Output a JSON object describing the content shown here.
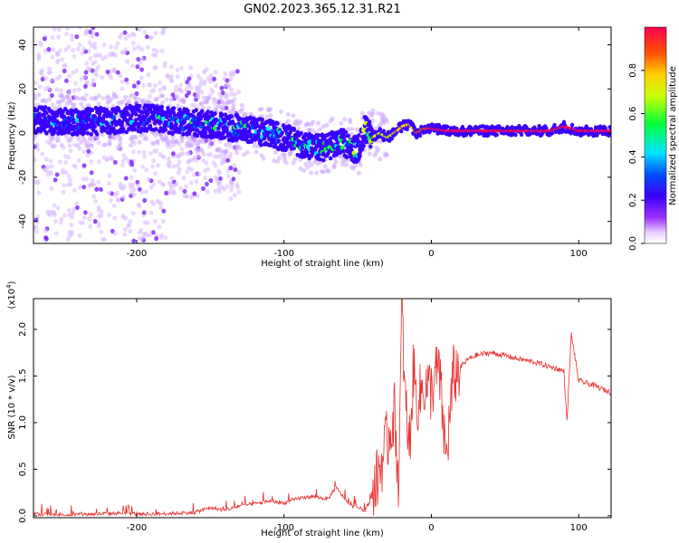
{
  "title": "GN02.2023.365.12.31.R21",
  "chart_data": [
    {
      "type": "heatmap",
      "xlabel": "Height of straight line (km)",
      "ylabel": "Frequency (Hz)",
      "xlim": [
        -270,
        122
      ],
      "ylim": [
        -50,
        48
      ],
      "x_ticks": [
        "-200",
        "-100",
        "0",
        "100"
      ],
      "x_tick_values": [
        -200,
        -100,
        0,
        100
      ],
      "y_ticks": [
        "-40",
        "-20",
        "0",
        "20",
        "40"
      ],
      "y_tick_values": [
        -40,
        -20,
        0,
        20,
        40
      ],
      "colorbar": {
        "label": "Normalized spectral amplitude",
        "ticks": [
          "0.0",
          "0.2",
          "0.4",
          "0.6",
          "0.8"
        ],
        "tick_values": [
          0.0,
          0.2,
          0.4,
          0.6,
          0.8
        ],
        "range": [
          0,
          1
        ],
        "colors": [
          "#ffffff",
          "#9b30ff",
          "#3a00ff",
          "#0050ff",
          "#00e5ff",
          "#00ff40",
          "#c8ff00",
          "#ffd000",
          "#ff5000",
          "#ff0050"
        ]
      },
      "ridge": {
        "x": [
          -270,
          -240,
          -210,
          -190,
          -170,
          -150,
          -130,
          -110,
          -95,
          -80,
          -70,
          -60,
          -50,
          -45,
          -40,
          -35,
          -30,
          -25,
          -20,
          -15,
          -10,
          -5,
          0,
          10,
          20,
          40,
          60,
          80,
          90,
          100,
          122
        ],
        "y": [
          6,
          5,
          6,
          7,
          5,
          4,
          2,
          0,
          -3,
          -7,
          -6,
          -4,
          -8,
          2,
          -2,
          0,
          -2,
          0,
          3,
          4,
          0,
          2,
          2,
          1,
          1,
          1,
          1,
          1,
          3,
          1,
          1
        ],
        "amplitude": [
          0.25,
          0.25,
          0.28,
          0.3,
          0.32,
          0.33,
          0.35,
          0.35,
          0.38,
          0.4,
          0.4,
          0.42,
          0.45,
          0.5,
          0.55,
          0.6,
          0.65,
          0.7,
          0.72,
          0.75,
          0.8,
          0.85,
          0.9,
          0.95,
          0.95,
          0.95,
          0.95,
          0.95,
          0.9,
          0.92,
          0.92
        ]
      }
    },
    {
      "type": "line",
      "xlabel": "Height of straight line (km)",
      "ylabel": "SNR (10 * v/v)",
      "y_multiplier": "(x10",
      "y_multiplier_exp": "4",
      "y_multiplier_close": ")",
      "xlim": [
        -270,
        122
      ],
      "ylim": [
        -0.02,
        2.33
      ],
      "x_ticks": [
        "-200",
        "-100",
        "0",
        "100"
      ],
      "x_tick_values": [
        -200,
        -100,
        0,
        100
      ],
      "y_ticks": [
        "0.0",
        "0.5",
        "1.0",
        "1.5",
        "2.0"
      ],
      "y_tick_values": [
        0.0,
        0.5,
        1.0,
        1.5,
        2.0
      ],
      "color": "#e83030",
      "series": [
        {
          "x": [
            -270,
            -250,
            -230,
            -210,
            -190,
            -170,
            -160,
            -150,
            -140,
            -130,
            -120,
            -110,
            -100,
            -90,
            -80,
            -70,
            -65,
            -55,
            -50,
            -45,
            -40,
            -35,
            -30,
            -25,
            -22,
            -20,
            -18,
            -15,
            -12,
            -10,
            -5,
            0,
            5,
            10,
            15,
            20,
            25,
            30,
            40,
            50,
            60,
            70,
            80,
            85,
            90,
            92,
            95,
            100,
            110,
            122
          ],
          "y": [
            0.01,
            0.0,
            0.01,
            0.02,
            0.01,
            0.02,
            0.03,
            0.08,
            0.05,
            0.1,
            0.12,
            0.15,
            0.13,
            0.18,
            0.2,
            0.17,
            0.3,
            0.1,
            0.08,
            0.05,
            0.2,
            0.5,
            0.8,
            1.1,
            0.3,
            2.33,
            1.3,
            0.7,
            1.6,
            1.2,
            1.4,
            1.35,
            1.6,
            0.6,
            1.5,
            1.6,
            1.68,
            1.72,
            1.75,
            1.72,
            1.68,
            1.65,
            1.6,
            1.58,
            1.55,
            1.0,
            1.95,
            1.45,
            1.4,
            1.32
          ]
        }
      ]
    }
  ]
}
